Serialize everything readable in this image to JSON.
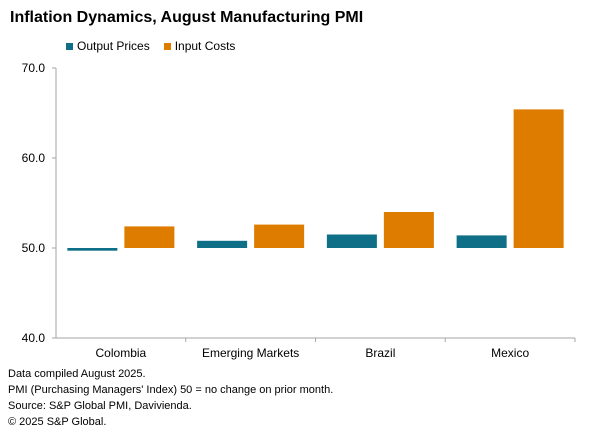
{
  "chart_data": {
    "type": "bar",
    "title": "Inflation Dynamics, August Manufacturing PMI",
    "categories": [
      "Colombia",
      "Emerging Markets",
      "Brazil",
      "Mexico"
    ],
    "series": [
      {
        "name": "Output Prices",
        "color": "#0e6f87",
        "values": [
          49.7,
          50.8,
          51.5,
          51.4
        ]
      },
      {
        "name": "Input Costs",
        "color": "#de7c00",
        "values": [
          52.4,
          52.6,
          54.0,
          65.4
        ]
      }
    ],
    "ylim": [
      40,
      70
    ],
    "yticks": [
      "40.0",
      "50.0",
      "60.0",
      "70.0"
    ],
    "baseline": 50,
    "grid": false,
    "legend": "top-left"
  },
  "footnotes": [
    "Data compiled August 2025.",
    "PMI (Purchasing Managers' Index) 50 = no change on prior month.",
    "Source: S&P Global PMI, Davivienda.",
    "© 2025 S&P Global."
  ]
}
